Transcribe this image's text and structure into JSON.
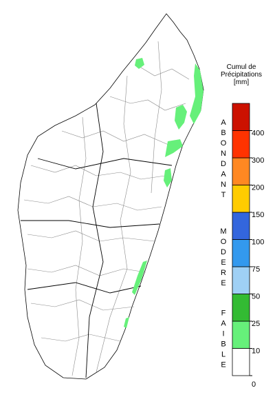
{
  "legend": {
    "title": [
      "Cumul de",
      "Précipitations",
      "[mm]"
    ],
    "ticks": [
      0,
      10,
      25,
      50,
      75,
      100,
      150,
      200,
      300,
      400
    ],
    "colors": [
      "#ffffff",
      "#66f07a",
      "#33bb33",
      "#9fd0f5",
      "#3399ee",
      "#3366dd",
      "#ffcc00",
      "#ff8822",
      "#ff3300",
      "#cc1100"
    ],
    "classes": [
      {
        "label": "ABONDANT",
        "from": 6,
        "to": 9
      },
      {
        "label": "MODERE",
        "from": 3,
        "to": 5
      },
      {
        "label": "FAIBLE",
        "from": 0,
        "to": 2
      }
    ]
  }
}
